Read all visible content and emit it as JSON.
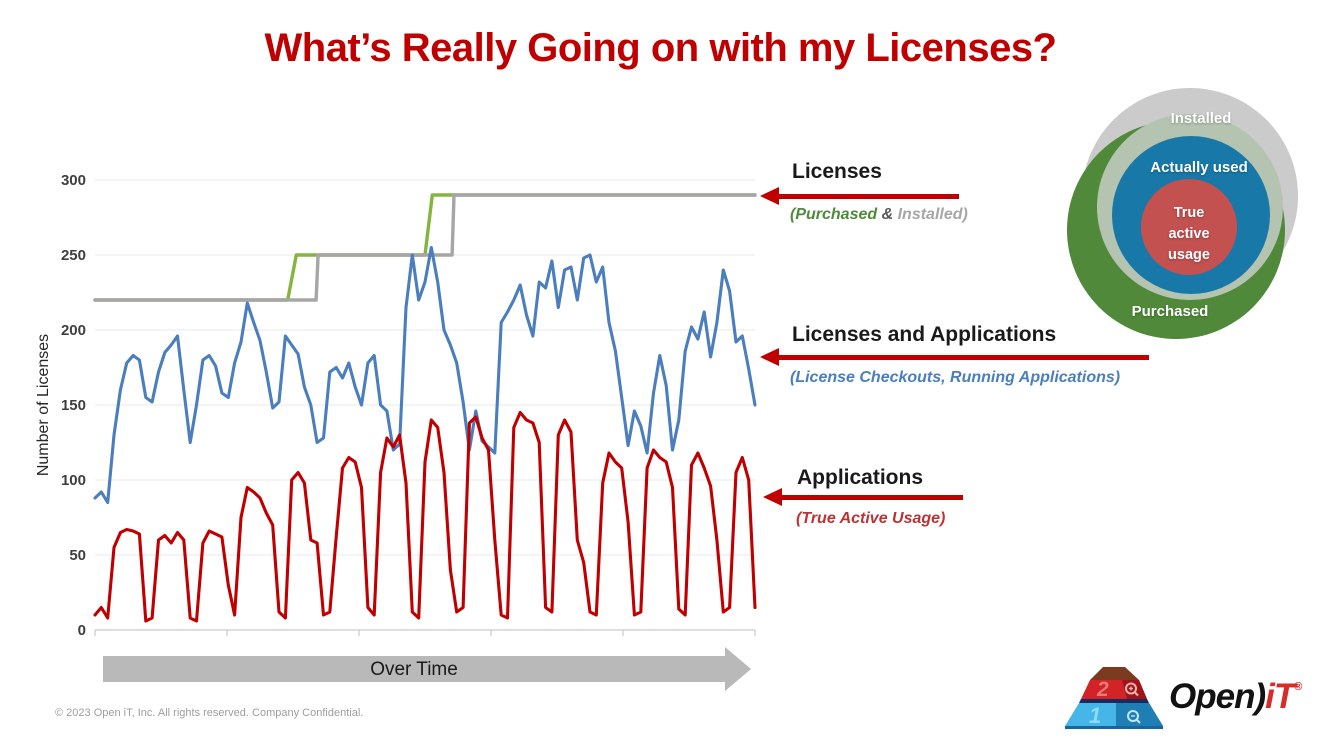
{
  "title": "What’s Really Going on with my Licenses?",
  "chart_data": {
    "type": "line",
    "title": "",
    "ylabel": "Number of Licenses",
    "xlabel": "Over Time",
    "ylim": [
      0,
      300
    ],
    "yticks": [
      0,
      50,
      100,
      150,
      200,
      250,
      300
    ],
    "x_axis_note": "daily time series, no x tick labels shown",
    "grid": "horizontal-only",
    "legend_position": "none (labeled by external arrow annotations)",
    "series": [
      {
        "name": "Purchased licenses",
        "color": "#86b440",
        "style": "step",
        "points_fraction_value": [
          [
            0,
            220
          ],
          [
            0.292,
            220
          ],
          [
            0.305,
            250
          ],
          [
            0.5,
            250
          ],
          [
            0.511,
            290
          ],
          [
            1,
            290
          ]
        ]
      },
      {
        "name": "Installed licenses",
        "color": "#a6a6a6",
        "style": "step",
        "points_fraction_value": [
          [
            0,
            220
          ],
          [
            0.335,
            220
          ],
          [
            0.338,
            250
          ],
          [
            0.541,
            250
          ],
          [
            0.544,
            290
          ],
          [
            1,
            290
          ]
        ]
      },
      {
        "name": "License Checkouts, Running Applications",
        "color": "#4a7ebd",
        "style": "line",
        "values": [
          88,
          92,
          85,
          130,
          160,
          178,
          183,
          180,
          155,
          152,
          172,
          185,
          190,
          196,
          160,
          125,
          150,
          180,
          183,
          176,
          158,
          155,
          178,
          192,
          218,
          205,
          193,
          172,
          148,
          152,
          196,
          190,
          184,
          162,
          150,
          125,
          128,
          172,
          175,
          168,
          178,
          162,
          150,
          178,
          183,
          150,
          146,
          120,
          124,
          215,
          250,
          220,
          232,
          255,
          232,
          200,
          190,
          178,
          152,
          120,
          146,
          126,
          122,
          118,
          205,
          212,
          220,
          230,
          210,
          196,
          232,
          228,
          246,
          215,
          240,
          242,
          220,
          248,
          250,
          232,
          242,
          205,
          186,
          155,
          123,
          146,
          136,
          118,
          158,
          183,
          163,
          120,
          140,
          186,
          202,
          194,
          212,
          182,
          205,
          240,
          226,
          192,
          196,
          174,
          150
        ]
      },
      {
        "name": "True Active Usage (applications)",
        "color": "#c00000",
        "style": "line",
        "values": [
          10,
          15,
          8,
          55,
          65,
          67,
          66,
          64,
          6,
          8,
          60,
          63,
          58,
          65,
          60,
          8,
          6,
          58,
          66,
          64,
          62,
          30,
          10,
          75,
          95,
          92,
          88,
          78,
          70,
          12,
          8,
          100,
          105,
          98,
          60,
          58,
          10,
          12,
          62,
          108,
          115,
          112,
          95,
          15,
          10,
          105,
          128,
          122,
          130,
          98,
          12,
          8,
          112,
          140,
          135,
          105,
          40,
          12,
          15,
          138,
          142,
          128,
          120,
          60,
          10,
          8,
          135,
          145,
          140,
          138,
          125,
          15,
          12,
          130,
          140,
          132,
          60,
          45,
          12,
          10,
          98,
          118,
          112,
          108,
          72,
          10,
          12,
          108,
          120,
          115,
          112,
          95,
          14,
          10,
          110,
          118,
          108,
          96,
          60,
          12,
          15,
          105,
          115,
          100,
          15
        ]
      }
    ]
  },
  "over_time_label": "Over Time",
  "annotations": [
    {
      "title": "Licenses",
      "sub_parts": {
        "p1": "(Purchased",
        "p2": " & ",
        "p3": "Installed)"
      }
    },
    {
      "title": "Licenses and Applications",
      "sub": "(License Checkouts, Running Applications)"
    },
    {
      "title": "Applications",
      "sub": "(True Active Usage)"
    }
  ],
  "venn": {
    "installed": "Installed",
    "actually_used": "Actually used",
    "true_active_usage": "True\nactive\nusage",
    "purchased": "Purchased",
    "colors": {
      "installed": "#cbcbcb",
      "purchased": "#4f8939",
      "overlap_ring": "#b5c4b1",
      "actually_used": "#1878a8",
      "true_active_usage": "#c25150"
    }
  },
  "footer": "© 2023 Open iT, Inc. All rights reserved. Company Confidential.",
  "logo": {
    "text_open": "Open)",
    "text_it": "iT",
    "reg": "®",
    "key_top_label": "2",
    "key_bottom_label": "1"
  },
  "accent_colors": {
    "title_red": "#c00000",
    "arrow_red": "#c00000"
  }
}
